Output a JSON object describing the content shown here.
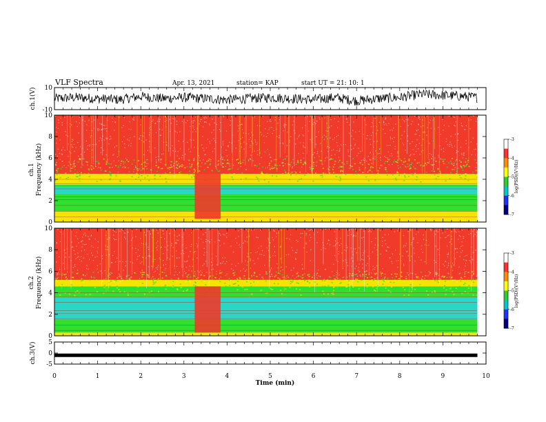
{
  "header": {
    "title": "VLF Spectra",
    "date": "Apr. 13, 2021",
    "station": "station= KAP",
    "start": "start  UT =   21: 10: 1"
  },
  "colors": {
    "spec_high": "#f03a2a",
    "spec_mid_red": "#ff6a1a",
    "spec_yellow": "#f4e400",
    "spec_green": "#2fe02f",
    "spec_cyan": "#2ad6c6",
    "spec_blue": "#1e3cff",
    "colorbar": [
      "#ffffff",
      "#ff3030",
      "#ff8c00",
      "#ffff00",
      "#2ecc2e",
      "#00c8c8",
      "#1e32ff",
      "#000080"
    ]
  },
  "chart_data": [
    {
      "type": "line",
      "panel": "ch1-waveform",
      "ylabel": "ch.1(V)",
      "ylim": [
        -10,
        10
      ],
      "yticks": [
        "10",
        "-10"
      ],
      "xlim": [
        0,
        10
      ],
      "series": [
        {
          "x": [
            0,
            0.5,
            1,
            1.5,
            2,
            2.5,
            3,
            3.5,
            4,
            4.5,
            5,
            5.5,
            6,
            6.5,
            7,
            7.5,
            8,
            8.5,
            9,
            9.5,
            9.8
          ],
          "values": [
            0,
            1,
            0,
            -1,
            2,
            0,
            1,
            0,
            -1,
            0,
            1,
            0,
            -1,
            1,
            -2,
            0,
            1,
            4,
            3,
            2,
            1
          ]
        }
      ]
    },
    {
      "type": "heatmap",
      "panel": "ch1-spectrogram",
      "ylabel": "ch.1\nFrequency (kHz)",
      "ylabel_line1": "ch.1",
      "ylabel_line2": "Frequency (kHz)",
      "ylim": [
        0,
        10
      ],
      "yticks": [
        "0",
        "2",
        "4",
        "6",
        "8",
        "10"
      ],
      "xlim": [
        0,
        10
      ],
      "data_end_min": 9.8,
      "bands_kHz": [
        {
          "from": 0,
          "to": 0.3,
          "level": "yellow"
        },
        {
          "from": 0.3,
          "to": 1.0,
          "level": "yellow"
        },
        {
          "from": 1.0,
          "to": 3.5,
          "level": "green"
        },
        {
          "from": 2.6,
          "to": 3.3,
          "level": "cyan"
        },
        {
          "from": 3.5,
          "to": 4.5,
          "level": "yellow"
        },
        {
          "from": 4.5,
          "to": 10,
          "level": "red"
        }
      ],
      "interval_min": [
        3.25,
        3.85
      ],
      "colorbar": {
        "label": "log(PSD)(V²/Hz)",
        "ticks": [
          "-3",
          "-4",
          "-5",
          "-6",
          "-7"
        ]
      }
    },
    {
      "type": "heatmap",
      "panel": "ch2-spectrogram",
      "ylabel": "ch.2\nFrequency (kHz)",
      "ylabel_line1": "ch.2",
      "ylabel_line2": "Frequency (kHz)",
      "ylim": [
        0,
        10
      ],
      "yticks": [
        "0",
        "2",
        "4",
        "6",
        "8",
        "10"
      ],
      "xlim": [
        0,
        10
      ],
      "data_end_min": 9.8,
      "bands_kHz": [
        {
          "from": 0,
          "to": 0.3,
          "level": "yellow"
        },
        {
          "from": 0.3,
          "to": 1.5,
          "level": "green"
        },
        {
          "from": 1.5,
          "to": 3.6,
          "level": "cyan"
        },
        {
          "from": 3.6,
          "to": 4.6,
          "level": "green"
        },
        {
          "from": 4.6,
          "to": 5.2,
          "level": "yellow"
        },
        {
          "from": 5.2,
          "to": 10,
          "level": "red"
        }
      ],
      "interval_min": [
        3.25,
        3.85
      ],
      "colorbar": {
        "label": "log(PSD)(V²/Hz)",
        "ticks": [
          "-3",
          "-4",
          "-5",
          "-6",
          "-7"
        ]
      }
    },
    {
      "type": "line",
      "panel": "ch3-waveform",
      "ylabel": "ch.3(V)",
      "ylim": [
        -5,
        5
      ],
      "yticks": [
        "5",
        "0",
        "-5"
      ],
      "xlim": [
        0,
        10
      ],
      "series": [
        {
          "x": [
            0,
            9.8
          ],
          "values": [
            -1,
            -1
          ]
        }
      ]
    }
  ],
  "xaxis": {
    "label": "Time (min)",
    "ticks": [
      "0",
      "1",
      "2",
      "3",
      "4",
      "5",
      "6",
      "7",
      "8",
      "9",
      "10"
    ]
  }
}
